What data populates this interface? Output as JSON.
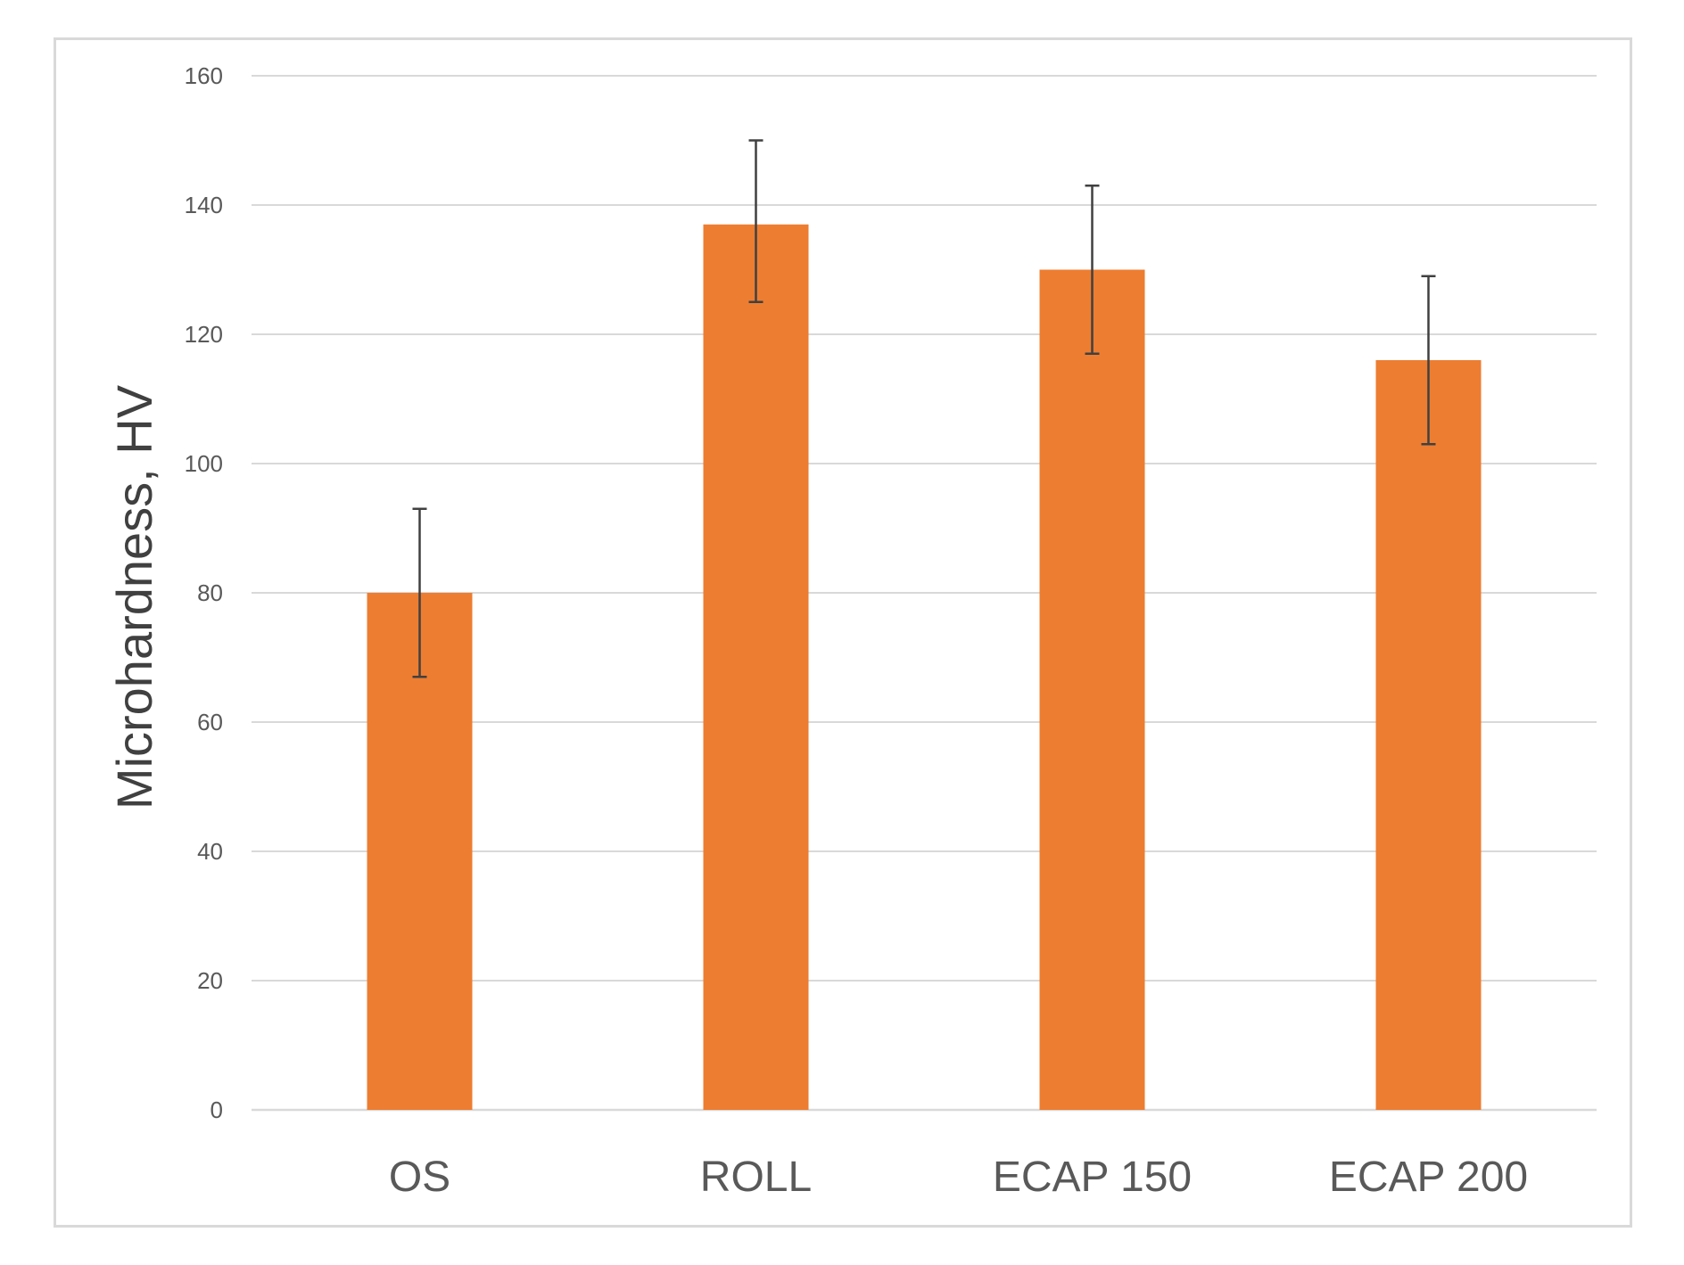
{
  "chart_data": {
    "type": "bar",
    "categories": [
      "OS",
      "ROLL",
      "ECAP 150",
      "ECAP 200"
    ],
    "values": [
      80,
      137,
      130,
      116
    ],
    "error_low": [
      67,
      125,
      117,
      103
    ],
    "error_high": [
      93,
      150,
      143,
      129
    ],
    "title": "",
    "xlabel": "",
    "ylabel": "Microhardness, HV",
    "ylim": [
      0,
      160
    ],
    "yticks": [
      "0",
      "20",
      "40",
      "60",
      "80",
      "100",
      "120",
      "140",
      "160"
    ],
    "grid": true,
    "legend": "none",
    "bar_color": "#ED7D31"
  }
}
